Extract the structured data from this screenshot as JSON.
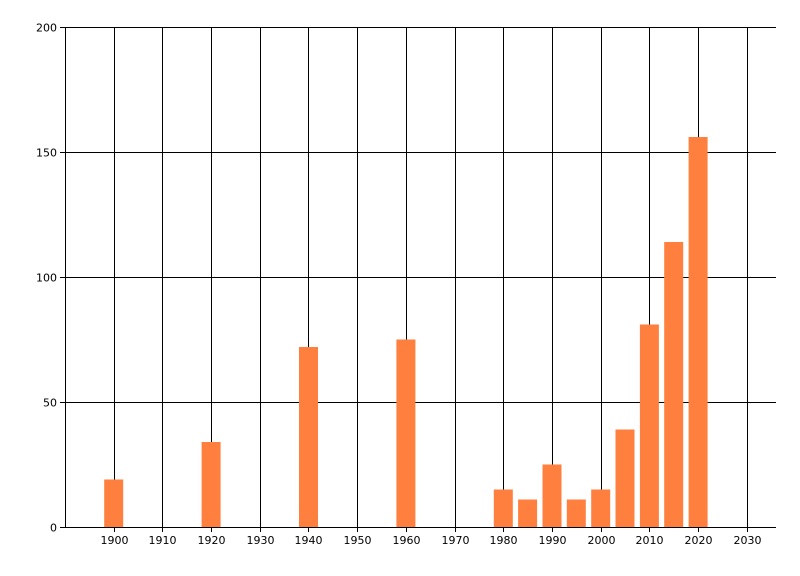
{
  "chart_data": {
    "type": "bar",
    "title": "",
    "xlabel": "",
    "ylabel": "",
    "x": [
      1900,
      1920,
      1940,
      1960,
      1980,
      1985,
      1990,
      1995,
      2000,
      2005,
      2010,
      2015,
      2020
    ],
    "values": [
      19,
      34,
      72,
      75,
      15,
      11,
      25,
      11,
      15,
      39,
      81,
      114,
      156
    ],
    "xlim": [
      1890,
      2036
    ],
    "ylim": [
      0,
      200
    ],
    "x_ticks": [
      1900,
      1910,
      1920,
      1930,
      1940,
      1950,
      1960,
      1970,
      1980,
      1990,
      2000,
      2010,
      2020,
      2030
    ],
    "y_ticks": [
      0,
      50,
      100,
      150,
      200
    ],
    "grid": true,
    "bar_color": "#ff7f3f",
    "grid_color": "#000000"
  }
}
